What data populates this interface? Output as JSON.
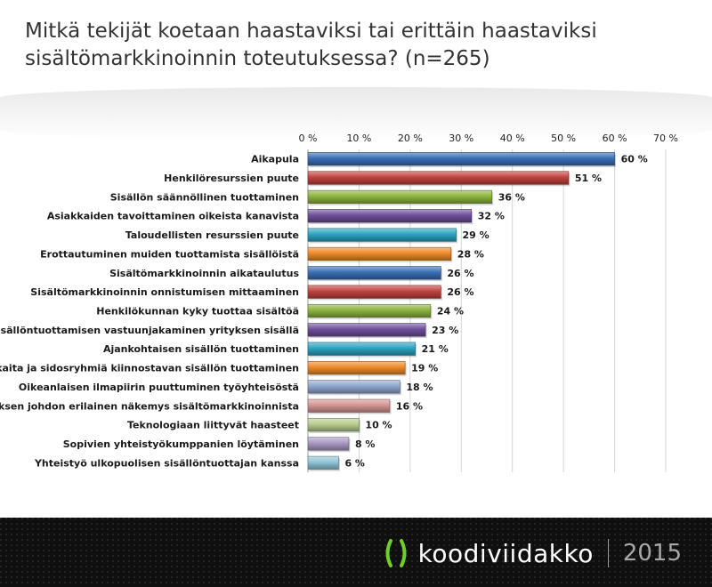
{
  "title": "Mitkä tekijät koetaan haastaviksi tai erittäin haastaviksi\nsisältömarkkinoinnin toteutuksessa? (n=265)",
  "chart_data": {
    "type": "bar",
    "orientation": "horizontal",
    "xlim": [
      0,
      70
    ],
    "ticks": [
      0,
      10,
      20,
      30,
      40,
      50,
      60,
      70
    ],
    "tick_labels": [
      "0 %",
      "10 %",
      "20 %",
      "30 %",
      "40 %",
      "50 %",
      "60 %",
      "70 %"
    ],
    "grid": true,
    "value_suffix": " %",
    "categories": [
      "Aikapula",
      "Henkilöresurssien puute",
      "Sisällön säännöllinen tuottaminen",
      "Asiakkaiden tavoittaminen oikeista kanavista",
      "Taloudellisten resurssien puute",
      "Erottautuminen muiden tuottamista sisällöistä",
      "Sisältömarkkinoinnin aikataulutus",
      "Sisältömarkkinoinnin onnistumisen mittaaminen",
      "Henkilökunnan kyky tuottaa sisältöä",
      "Sisällöntuottamisen vastuunjakaminen yrityksen sisällä",
      "Ajankohtaisen sisällön tuottaminen",
      "Asiakkaita ja sidosryhmiä kiinnostavan sisällön tuottaminen",
      "Oikeanlaisen ilmapiirin puuttuminen työyhteisöstä",
      "Yrityksen johdon erilainen näkemys sisältömarkkinoinnista",
      "Teknologiaan liittyvät haasteet",
      "Sopivien yhteistyökumppanien löytäminen",
      "Yhteistyö ulkopuolisen sisällöntuottajan kanssa"
    ],
    "values": [
      60,
      51,
      36,
      32,
      29,
      28,
      26,
      26,
      24,
      23,
      21,
      19,
      18,
      16,
      10,
      8,
      6
    ],
    "colors": [
      "#3a6fb5",
      "#c0423d",
      "#8db43f",
      "#6e4f9a",
      "#2ba3c2",
      "#ee8a2a",
      "#3a6fb5",
      "#c0423d",
      "#8db43f",
      "#6e4f9a",
      "#2ba3c2",
      "#ee8a2a",
      "#8ea6cd",
      "#d59593",
      "#b9cc8f",
      "#a899c3",
      "#8fc6d6"
    ]
  },
  "footer": {
    "brand": "koodiviidakko",
    "year": "2015"
  }
}
